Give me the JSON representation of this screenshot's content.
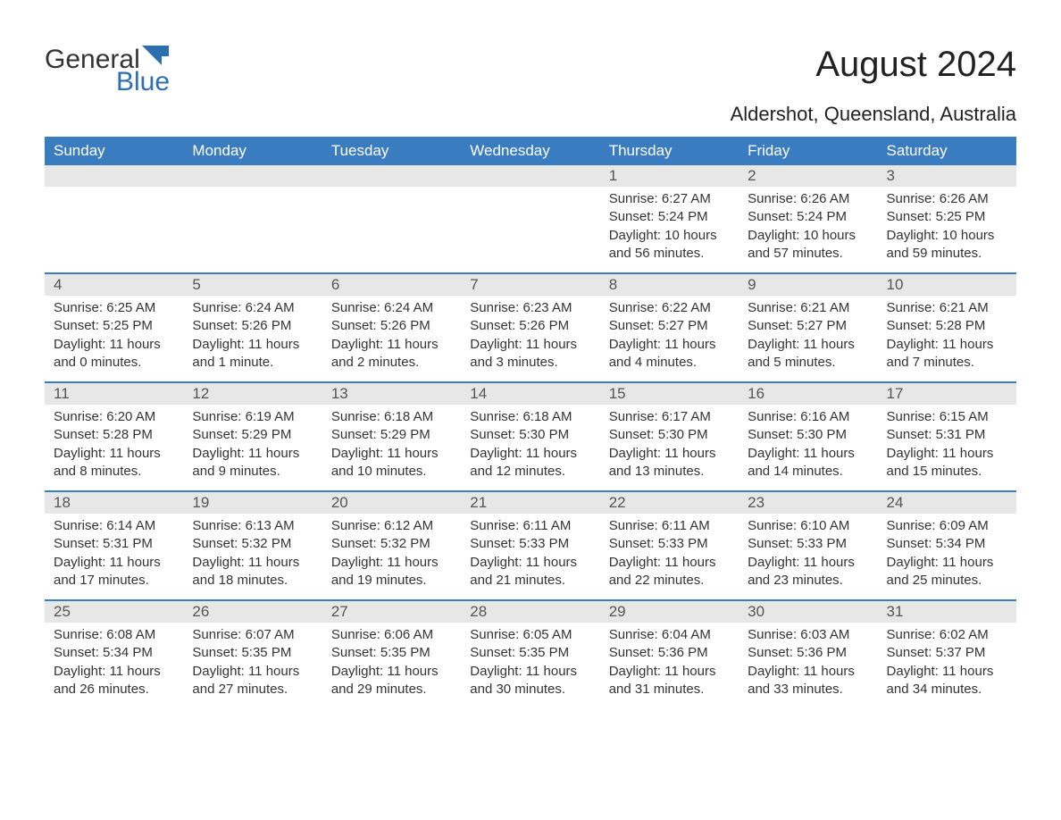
{
  "logo": {
    "general": "General",
    "blue": "Blue"
  },
  "header": {
    "month_title": "August 2024",
    "location": "Aldershot, Queensland, Australia"
  },
  "calendar": {
    "type": "table",
    "header_bg": "#3a7cc0",
    "header_fg": "#ffffff",
    "daynum_bg": "#e7e7e7",
    "row_border_color": "#3a7cc0",
    "text_color": "#333333",
    "background_color": "#ffffff",
    "body_fontsize": 15,
    "header_fontsize": 17,
    "weekdays": [
      "Sunday",
      "Monday",
      "Tuesday",
      "Wednesday",
      "Thursday",
      "Friday",
      "Saturday"
    ],
    "weeks": [
      [
        null,
        null,
        null,
        null,
        {
          "day": "1",
          "sunrise": "Sunrise: 6:27 AM",
          "sunset": "Sunset: 5:24 PM",
          "daylight1": "Daylight: 10 hours",
          "daylight2": "and 56 minutes."
        },
        {
          "day": "2",
          "sunrise": "Sunrise: 6:26 AM",
          "sunset": "Sunset: 5:24 PM",
          "daylight1": "Daylight: 10 hours",
          "daylight2": "and 57 minutes."
        },
        {
          "day": "3",
          "sunrise": "Sunrise: 6:26 AM",
          "sunset": "Sunset: 5:25 PM",
          "daylight1": "Daylight: 10 hours",
          "daylight2": "and 59 minutes."
        }
      ],
      [
        {
          "day": "4",
          "sunrise": "Sunrise: 6:25 AM",
          "sunset": "Sunset: 5:25 PM",
          "daylight1": "Daylight: 11 hours",
          "daylight2": "and 0 minutes."
        },
        {
          "day": "5",
          "sunrise": "Sunrise: 6:24 AM",
          "sunset": "Sunset: 5:26 PM",
          "daylight1": "Daylight: 11 hours",
          "daylight2": "and 1 minute."
        },
        {
          "day": "6",
          "sunrise": "Sunrise: 6:24 AM",
          "sunset": "Sunset: 5:26 PM",
          "daylight1": "Daylight: 11 hours",
          "daylight2": "and 2 minutes."
        },
        {
          "day": "7",
          "sunrise": "Sunrise: 6:23 AM",
          "sunset": "Sunset: 5:26 PM",
          "daylight1": "Daylight: 11 hours",
          "daylight2": "and 3 minutes."
        },
        {
          "day": "8",
          "sunrise": "Sunrise: 6:22 AM",
          "sunset": "Sunset: 5:27 PM",
          "daylight1": "Daylight: 11 hours",
          "daylight2": "and 4 minutes."
        },
        {
          "day": "9",
          "sunrise": "Sunrise: 6:21 AM",
          "sunset": "Sunset: 5:27 PM",
          "daylight1": "Daylight: 11 hours",
          "daylight2": "and 5 minutes."
        },
        {
          "day": "10",
          "sunrise": "Sunrise: 6:21 AM",
          "sunset": "Sunset: 5:28 PM",
          "daylight1": "Daylight: 11 hours",
          "daylight2": "and 7 minutes."
        }
      ],
      [
        {
          "day": "11",
          "sunrise": "Sunrise: 6:20 AM",
          "sunset": "Sunset: 5:28 PM",
          "daylight1": "Daylight: 11 hours",
          "daylight2": "and 8 minutes."
        },
        {
          "day": "12",
          "sunrise": "Sunrise: 6:19 AM",
          "sunset": "Sunset: 5:29 PM",
          "daylight1": "Daylight: 11 hours",
          "daylight2": "and 9 minutes."
        },
        {
          "day": "13",
          "sunrise": "Sunrise: 6:18 AM",
          "sunset": "Sunset: 5:29 PM",
          "daylight1": "Daylight: 11 hours",
          "daylight2": "and 10 minutes."
        },
        {
          "day": "14",
          "sunrise": "Sunrise: 6:18 AM",
          "sunset": "Sunset: 5:30 PM",
          "daylight1": "Daylight: 11 hours",
          "daylight2": "and 12 minutes."
        },
        {
          "day": "15",
          "sunrise": "Sunrise: 6:17 AM",
          "sunset": "Sunset: 5:30 PM",
          "daylight1": "Daylight: 11 hours",
          "daylight2": "and 13 minutes."
        },
        {
          "day": "16",
          "sunrise": "Sunrise: 6:16 AM",
          "sunset": "Sunset: 5:30 PM",
          "daylight1": "Daylight: 11 hours",
          "daylight2": "and 14 minutes."
        },
        {
          "day": "17",
          "sunrise": "Sunrise: 6:15 AM",
          "sunset": "Sunset: 5:31 PM",
          "daylight1": "Daylight: 11 hours",
          "daylight2": "and 15 minutes."
        }
      ],
      [
        {
          "day": "18",
          "sunrise": "Sunrise: 6:14 AM",
          "sunset": "Sunset: 5:31 PM",
          "daylight1": "Daylight: 11 hours",
          "daylight2": "and 17 minutes."
        },
        {
          "day": "19",
          "sunrise": "Sunrise: 6:13 AM",
          "sunset": "Sunset: 5:32 PM",
          "daylight1": "Daylight: 11 hours",
          "daylight2": "and 18 minutes."
        },
        {
          "day": "20",
          "sunrise": "Sunrise: 6:12 AM",
          "sunset": "Sunset: 5:32 PM",
          "daylight1": "Daylight: 11 hours",
          "daylight2": "and 19 minutes."
        },
        {
          "day": "21",
          "sunrise": "Sunrise: 6:11 AM",
          "sunset": "Sunset: 5:33 PM",
          "daylight1": "Daylight: 11 hours",
          "daylight2": "and 21 minutes."
        },
        {
          "day": "22",
          "sunrise": "Sunrise: 6:11 AM",
          "sunset": "Sunset: 5:33 PM",
          "daylight1": "Daylight: 11 hours",
          "daylight2": "and 22 minutes."
        },
        {
          "day": "23",
          "sunrise": "Sunrise: 6:10 AM",
          "sunset": "Sunset: 5:33 PM",
          "daylight1": "Daylight: 11 hours",
          "daylight2": "and 23 minutes."
        },
        {
          "day": "24",
          "sunrise": "Sunrise: 6:09 AM",
          "sunset": "Sunset: 5:34 PM",
          "daylight1": "Daylight: 11 hours",
          "daylight2": "and 25 minutes."
        }
      ],
      [
        {
          "day": "25",
          "sunrise": "Sunrise: 6:08 AM",
          "sunset": "Sunset: 5:34 PM",
          "daylight1": "Daylight: 11 hours",
          "daylight2": "and 26 minutes."
        },
        {
          "day": "26",
          "sunrise": "Sunrise: 6:07 AM",
          "sunset": "Sunset: 5:35 PM",
          "daylight1": "Daylight: 11 hours",
          "daylight2": "and 27 minutes."
        },
        {
          "day": "27",
          "sunrise": "Sunrise: 6:06 AM",
          "sunset": "Sunset: 5:35 PM",
          "daylight1": "Daylight: 11 hours",
          "daylight2": "and 29 minutes."
        },
        {
          "day": "28",
          "sunrise": "Sunrise: 6:05 AM",
          "sunset": "Sunset: 5:35 PM",
          "daylight1": "Daylight: 11 hours",
          "daylight2": "and 30 minutes."
        },
        {
          "day": "29",
          "sunrise": "Sunrise: 6:04 AM",
          "sunset": "Sunset: 5:36 PM",
          "daylight1": "Daylight: 11 hours",
          "daylight2": "and 31 minutes."
        },
        {
          "day": "30",
          "sunrise": "Sunrise: 6:03 AM",
          "sunset": "Sunset: 5:36 PM",
          "daylight1": "Daylight: 11 hours",
          "daylight2": "and 33 minutes."
        },
        {
          "day": "31",
          "sunrise": "Sunrise: 6:02 AM",
          "sunset": "Sunset: 5:37 PM",
          "daylight1": "Daylight: 11 hours",
          "daylight2": "and 34 minutes."
        }
      ]
    ]
  }
}
